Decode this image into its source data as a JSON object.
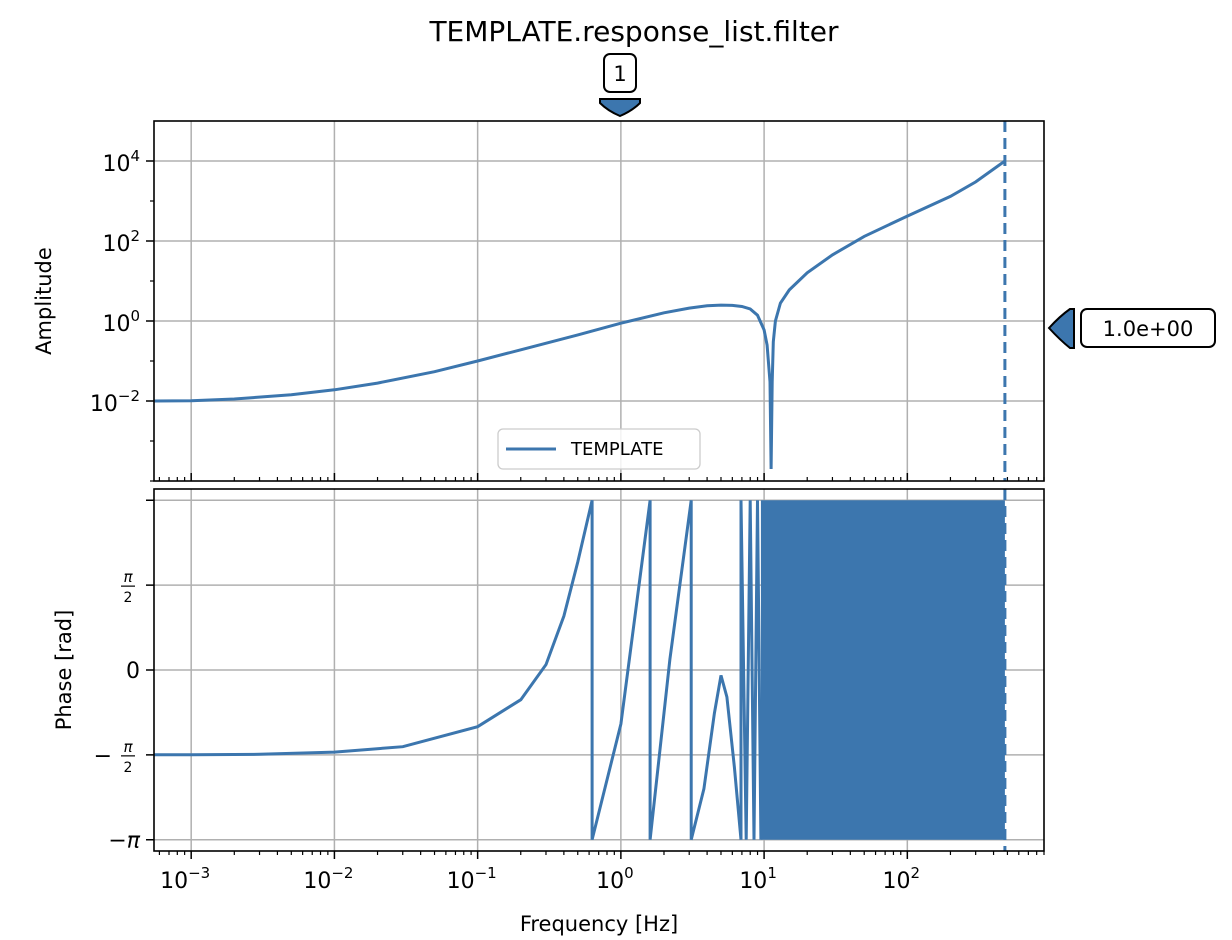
{
  "title": "TEMPLATE.response_list.filter",
  "colors": {
    "line": "#3c76ae",
    "grid": "#b0b0b0",
    "axes": "#000000"
  },
  "chart_data": [
    {
      "type": "line",
      "panel": "amplitude",
      "ylabel": "Amplitude",
      "yscale": "log",
      "xscale": "log",
      "xlim": [
        0.00055,
        900
      ],
      "ylim": [
        0.0001,
        100000
      ],
      "y_ticks": [
        {
          "base": "10",
          "exp": "4"
        },
        {
          "base": "10",
          "exp": "2"
        },
        {
          "base": "10",
          "exp": "0"
        },
        {
          "base": "10",
          "exp": "−2"
        }
      ],
      "y_tick_values": [
        10000,
        100,
        1,
        0.01
      ],
      "grid": true,
      "legend": {
        "label": "TEMPLATE",
        "placement": "lower-center"
      },
      "series": [
        {
          "name": "TEMPLATE",
          "x": [
            0.00055,
            0.001,
            0.002,
            0.005,
            0.01,
            0.02,
            0.05,
            0.1,
            0.2,
            0.5,
            1,
            2,
            3,
            4,
            5,
            6,
            7,
            8,
            9,
            10,
            10.5,
            11,
            11.2,
            11.4,
            11.6,
            12,
            13,
            15,
            20,
            30,
            50,
            100,
            200,
            300,
            480
          ],
          "y": [
            0.01,
            0.0101,
            0.0112,
            0.0143,
            0.019,
            0.028,
            0.054,
            0.1,
            0.19,
            0.45,
            0.88,
            1.6,
            2.1,
            2.4,
            2.5,
            2.45,
            2.3,
            2.0,
            1.4,
            0.6,
            0.25,
            0.03,
            0.0002,
            0.03,
            0.3,
            1.0,
            2.8,
            6.0,
            16,
            45,
            130,
            420,
            1300,
            3000,
            10000
          ]
        }
      ],
      "vline": {
        "x": 480,
        "style": "dashed"
      },
      "annotations": [
        {
          "label": "1",
          "x": 1,
          "position": "top"
        },
        {
          "label": "1.0e+00",
          "y": 1,
          "position": "right"
        }
      ]
    },
    {
      "type": "line",
      "panel": "phase",
      "ylabel": "Phase [rad]",
      "xlabel": "Frequency [Hz]",
      "xscale": "log",
      "xlim": [
        0.00055,
        900
      ],
      "ylim": [
        -3.35,
        3.35
      ],
      "x_ticks": [
        {
          "base": "10",
          "exp": "−3"
        },
        {
          "base": "10",
          "exp": "−2"
        },
        {
          "base": "10",
          "exp": "−1"
        },
        {
          "base": "10",
          "exp": "0"
        },
        {
          "base": "10",
          "exp": "1"
        },
        {
          "base": "10",
          "exp": "2"
        }
      ],
      "x_tick_values": [
        0.001,
        0.01,
        0.1,
        1,
        10,
        100
      ],
      "y_tick_values": [
        3.1416,
        1.5708,
        0,
        -1.5708,
        -3.1416
      ],
      "y_tick_labels": [
        "",
        "π/2",
        "0",
        "−π/2",
        "−π"
      ],
      "grid": true,
      "series": [
        {
          "name": "TEMPLATE",
          "x": [
            0.00055,
            0.001,
            0.003,
            0.01,
            0.03,
            0.1,
            0.2,
            0.3,
            0.4,
            0.5,
            0.63,
            0.63,
            1.0,
            1.6,
            1.6,
            2.2,
            3.1,
            3.1,
            3.8,
            4.5,
            5.0,
            5.5,
            6.2,
            6.9,
            6.9,
            7.5,
            8.0,
            8.5,
            9.0,
            9.5
          ],
          "y": [
            -1.57,
            -1.569,
            -1.56,
            -1.52,
            -1.42,
            -1.05,
            -0.55,
            0.1,
            1.0,
            2.0,
            3.14,
            -3.14,
            -1.0,
            3.14,
            -3.14,
            0.2,
            3.14,
            -3.14,
            -2.2,
            -0.8,
            -0.1,
            -0.5,
            -1.8,
            -3.14,
            3.14,
            -3.14,
            3.14,
            -3.14,
            3.14,
            -3.14
          ]
        }
      ],
      "oscillation_band": {
        "x_start": 9.5,
        "x_end": 480,
        "y_min": -3.1416,
        "y_max": 3.1416
      },
      "vline": {
        "x": 480,
        "style": "dashed"
      }
    }
  ]
}
